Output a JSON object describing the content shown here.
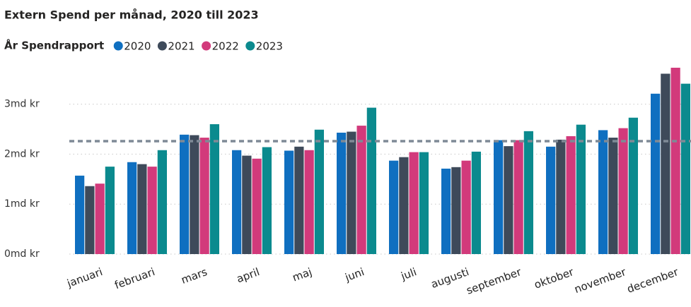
{
  "chart_data": {
    "type": "bar",
    "title": "Extern Spend per månad, 2020 till 2023",
    "legend_title": "År Spendrapport",
    "categories": [
      "januari",
      "februari",
      "mars",
      "april",
      "maj",
      "juni",
      "juli",
      "augusti",
      "september",
      "oktober",
      "november",
      "december"
    ],
    "series": [
      {
        "name": "2020",
        "color": "#0f6fc0",
        "values": [
          1.57,
          1.84,
          2.39,
          2.08,
          2.07,
          2.43,
          1.87,
          1.71,
          2.28,
          2.15,
          2.48,
          3.21
        ]
      },
      {
        "name": "2021",
        "color": "#3e4a5a",
        "values": [
          1.36,
          1.8,
          2.38,
          1.97,
          2.15,
          2.45,
          1.94,
          1.74,
          2.16,
          2.29,
          2.33,
          3.61
        ]
      },
      {
        "name": "2022",
        "color": "#d23a7b",
        "values": [
          1.41,
          1.75,
          2.33,
          1.91,
          2.08,
          2.57,
          2.04,
          1.87,
          2.28,
          2.36,
          2.52,
          3.73
        ]
      },
      {
        "name": "2023",
        "color": "#0b8a8e",
        "values": [
          1.75,
          2.08,
          2.6,
          2.14,
          2.49,
          2.93,
          2.04,
          2.05,
          2.46,
          2.59,
          2.73,
          3.41
        ]
      }
    ],
    "reference_line": 2.26,
    "ylim": [
      0,
      3.8
    ],
    "yticks": [
      {
        "value": 0,
        "label": "0md kr"
      },
      {
        "value": 1,
        "label": "1md kr"
      },
      {
        "value": 2,
        "label": "2md kr"
      },
      {
        "value": 3,
        "label": "3md kr"
      }
    ],
    "grid": true
  }
}
